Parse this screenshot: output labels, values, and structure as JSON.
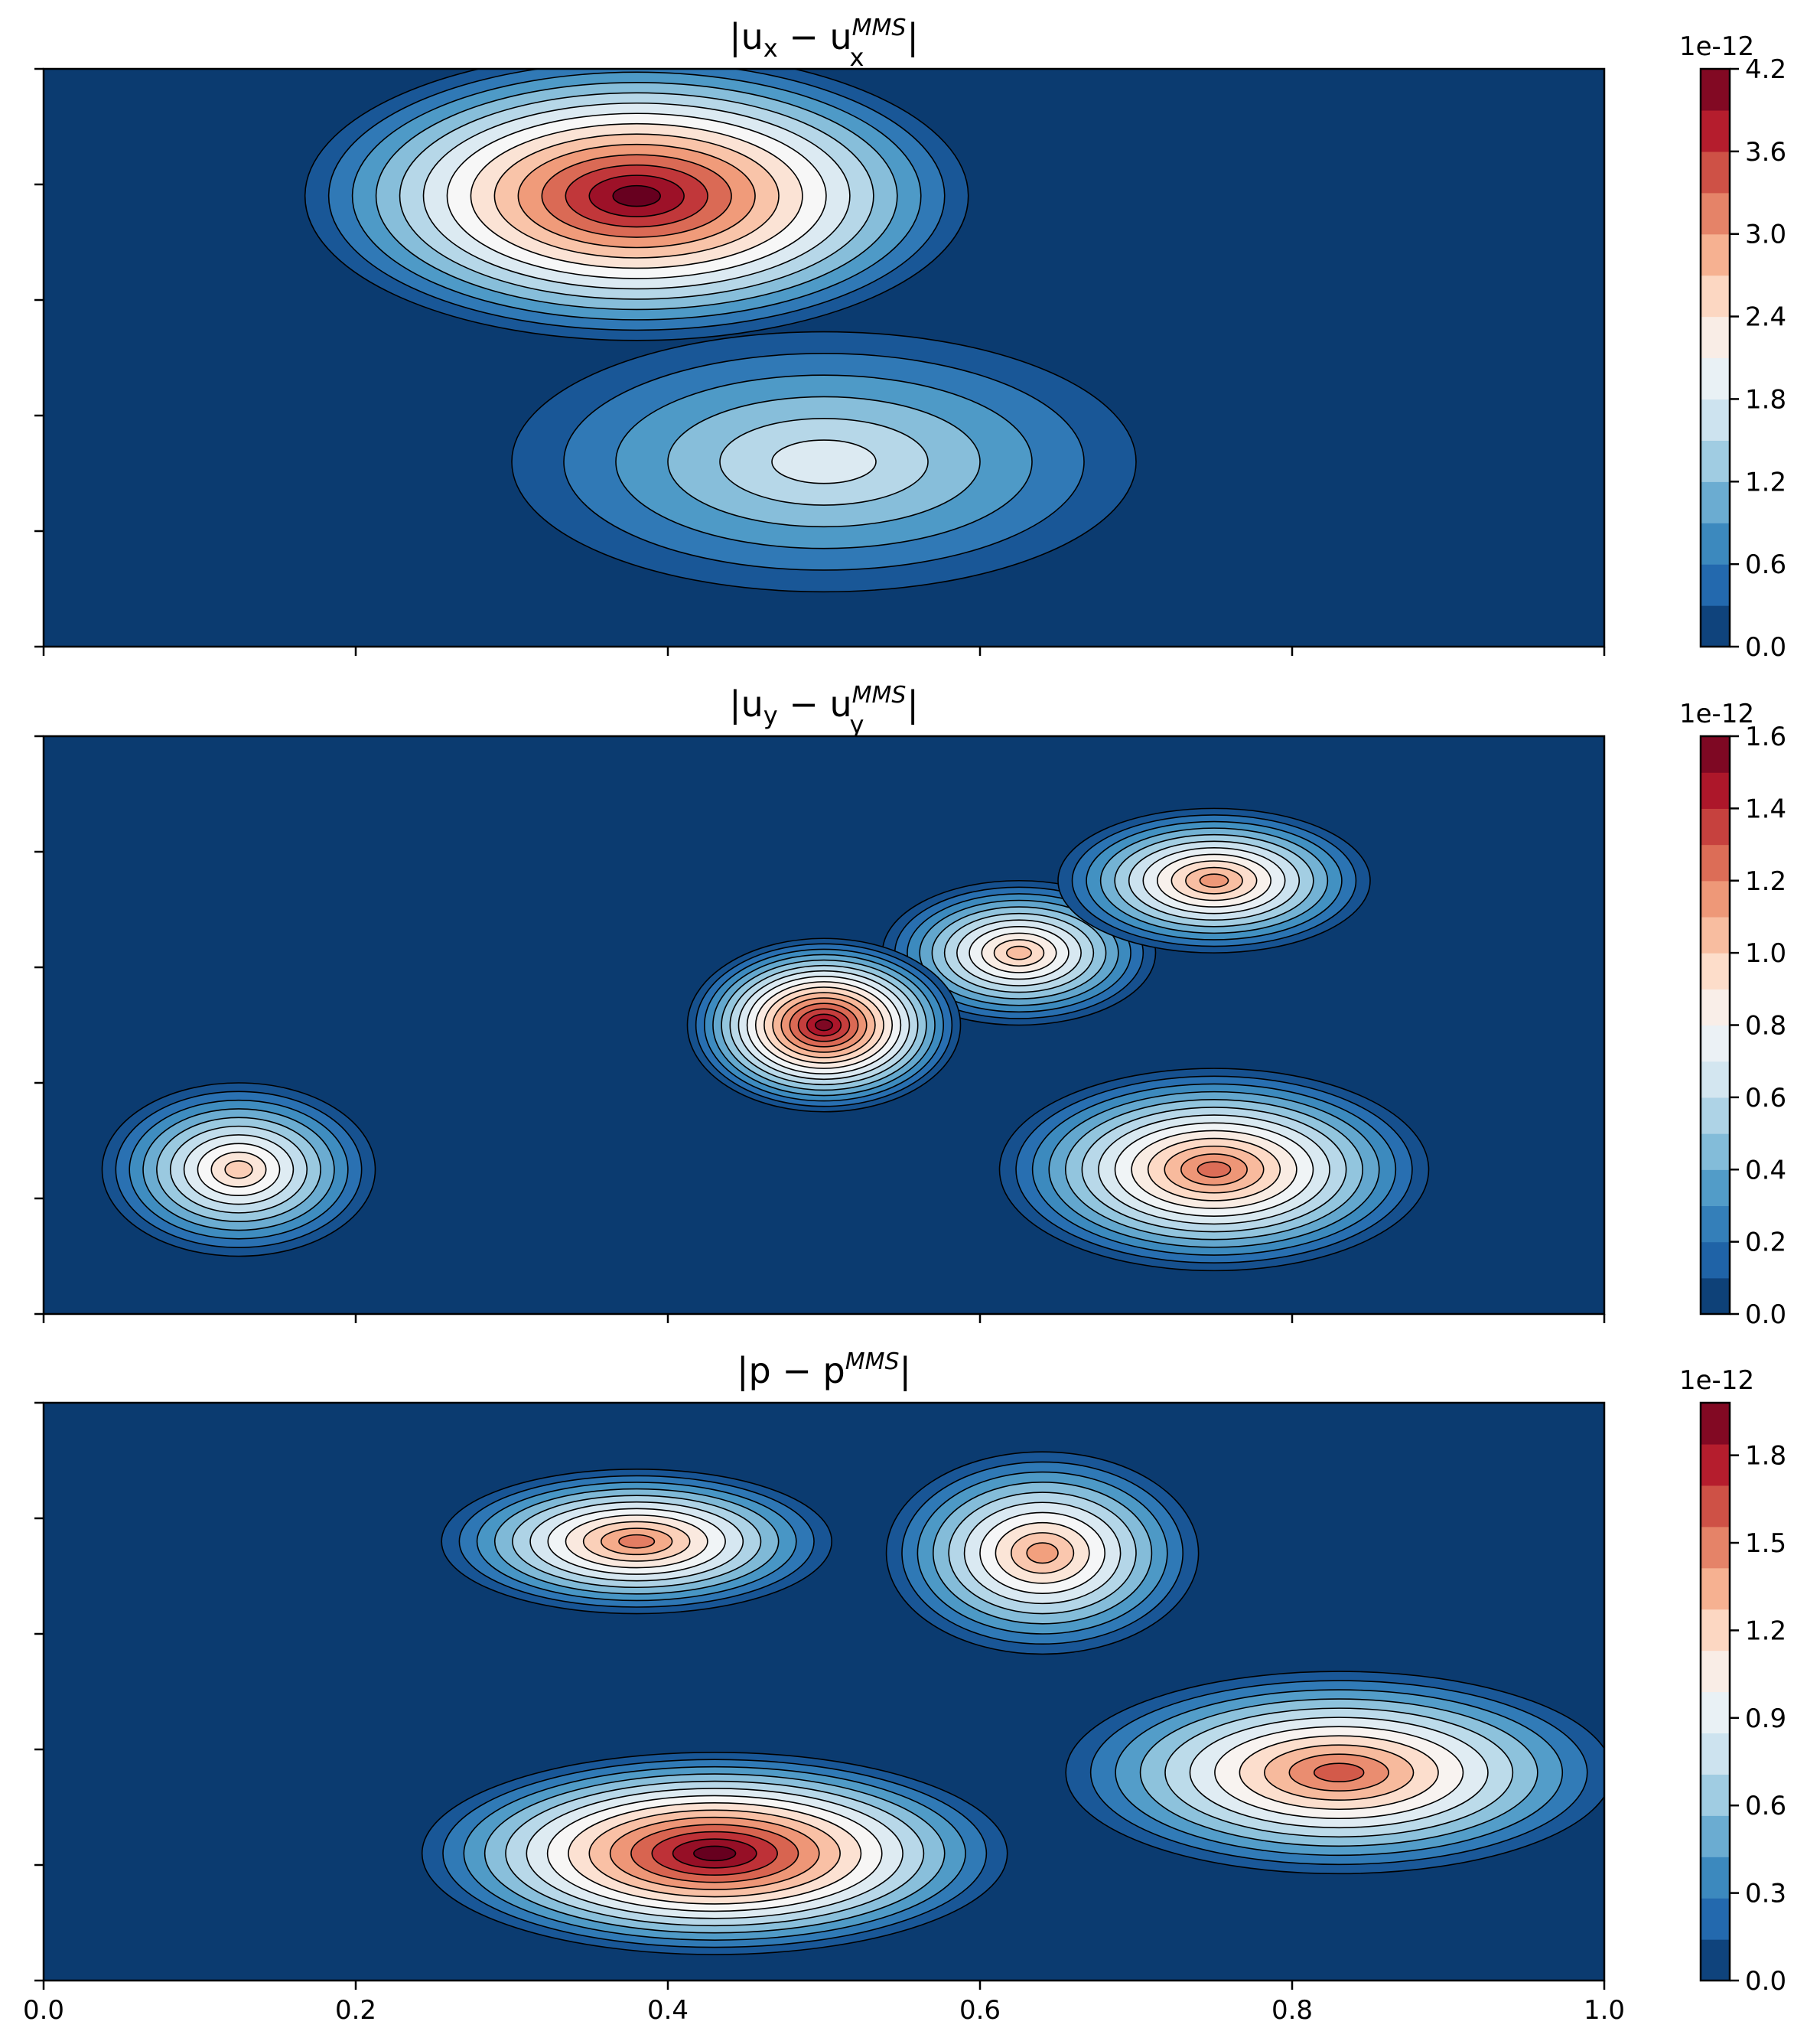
{
  "chart_data": [
    {
      "type": "contour",
      "title_base": "|u",
      "title_sub": "x",
      "title_mid": " − u",
      "title_sup": "MMS",
      "title_sub2": "x",
      "title_end": "|",
      "colormap": "RdBu_r",
      "xlim": [
        0,
        1
      ],
      "x_ticks": [
        0,
        0.2,
        0.4,
        0.6,
        0.8,
        1.0
      ],
      "x_tick_labels_visible": false,
      "y_tick_labels_visible": false,
      "colorbar": {
        "offset_label": "1e-12",
        "ticks": [
          "0.0",
          "0.6",
          "1.2",
          "1.8",
          "2.4",
          "3.0",
          "3.6",
          "4.2"
        ],
        "levels": 14
      },
      "peaks": [
        {
          "x": 0.37,
          "y": 0.75,
          "value": 4.2
        },
        {
          "x": 0.5,
          "y": 0.3,
          "value": 1.8
        }
      ]
    },
    {
      "type": "contour",
      "title_base": "|u",
      "title_sub": "y",
      "title_mid": " − u",
      "title_sup": "MMS",
      "title_sub2": "y",
      "title_end": "|",
      "colormap": "RdBu_r",
      "xlim": [
        0,
        1
      ],
      "x_ticks": [
        0,
        0.2,
        0.4,
        0.6,
        0.8,
        1.0
      ],
      "x_tick_labels_visible": false,
      "y_tick_labels_visible": false,
      "colorbar": {
        "offset_label": "1e-12",
        "ticks": [
          "0.0",
          "0.2",
          "0.4",
          "0.6",
          "0.8",
          "1.0",
          "1.2",
          "1.4",
          "1.6"
        ],
        "levels": 16
      },
      "peaks": [
        {
          "x": 0.5,
          "y": 0.5,
          "value": 1.55
        },
        {
          "x": 0.75,
          "y": 0.25,
          "value": 1.25
        },
        {
          "x": 0.75,
          "y": 0.75,
          "value": 1.15
        },
        {
          "x": 0.625,
          "y": 0.625,
          "value": 1.05
        },
        {
          "x": 0.125,
          "y": 0.25,
          "value": 1.0
        }
      ]
    },
    {
      "type": "contour",
      "title_base": "|p − p",
      "title_sub": "",
      "title_mid": "",
      "title_sup": "MMS",
      "title_sub2": "",
      "title_end": "|",
      "colormap": "RdBu_r",
      "xlim": [
        0,
        1
      ],
      "x_ticks": [
        0,
        0.2,
        0.4,
        0.6,
        0.8,
        1.0
      ],
      "x_tick_labels": [
        "0.0",
        "0.2",
        "0.4",
        "0.6",
        "0.8",
        "1.0"
      ],
      "x_tick_labels_visible": true,
      "y_tick_labels_visible": false,
      "colorbar": {
        "offset_label": "1e-12",
        "ticks": [
          "0.0",
          "0.3",
          "0.6",
          "0.9",
          "1.2",
          "1.5",
          "1.8"
        ],
        "levels": 14
      },
      "peaks": [
        {
          "x": 0.4,
          "y": 0.2,
          "value": 2.0
        },
        {
          "x": 0.82,
          "y": 0.35,
          "value": 1.6
        },
        {
          "x": 0.4,
          "y": 0.78,
          "value": 1.5
        },
        {
          "x": 0.64,
          "y": 0.75,
          "value": 1.4
        }
      ]
    }
  ]
}
